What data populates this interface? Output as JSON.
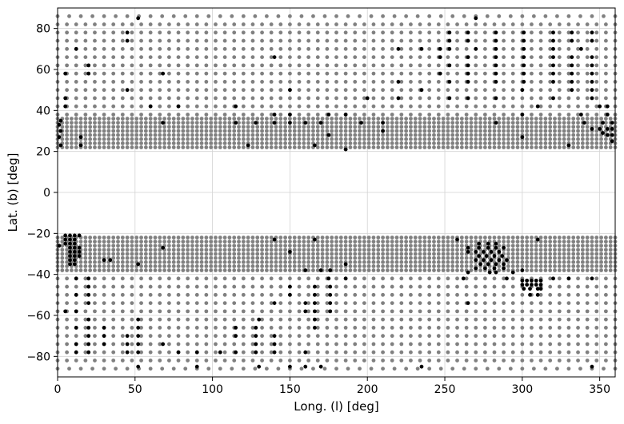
{
  "chart_data": {
    "type": "scatter",
    "xlabel": "Long. (l) [deg]",
    "ylabel": "Lat. (b) [deg]",
    "xlim": [
      0,
      360
    ],
    "ylim": [
      -90,
      90
    ],
    "xticks": [
      0,
      50,
      100,
      150,
      200,
      250,
      300,
      350
    ],
    "yticks": [
      -80,
      -60,
      -40,
      -20,
      0,
      20,
      40,
      60,
      80
    ],
    "grid": true,
    "colors": {
      "grey": "#808080",
      "black": "#000000",
      "grid": "#d3d3d3"
    },
    "series": [
      {
        "color": "#808080",
        "description_points": "dense regular grid of fields",
        "regions": [
          {
            "b": [
              -86,
              -86
            ],
            "l_step": 7.5,
            "b_step": 4,
            "l": [
              0,
              360
            ]
          },
          {
            "b": [
              -82,
              -42
            ],
            "l_step": 6,
            "b_step": 4,
            "l": [
              0,
              360
            ]
          },
          {
            "b": [
              -38,
              -22
            ],
            "l_step": 3,
            "b_step": 2,
            "l": [
              0,
              360
            ]
          },
          {
            "b": [
              22,
              36
            ],
            "l_step": 3,
            "b_step": 2,
            "l": [
              0,
              360
            ]
          },
          {
            "b": [
              38,
              82
            ],
            "l_step": 6,
            "b_step": 4,
            "l": [
              0,
              360
            ]
          },
          {
            "b": [
              86,
              86
            ],
            "l_step": 7.5,
            "b_step": 4,
            "l": [
              0,
              360
            ]
          }
        ]
      },
      {
        "color": "#000000",
        "points": [
          [
            52,
            85
          ],
          [
            270,
            85
          ],
          [
            235,
            -85
          ],
          [
            345,
            -85
          ],
          [
            90,
            -85
          ],
          [
            130,
            -85
          ],
          [
            150,
            -85
          ],
          [
            160,
            -85
          ],
          [
            170,
            -85
          ],
          [
            52,
            -85
          ],
          [
            45,
            78
          ],
          [
            253,
            78
          ],
          [
            265,
            78
          ],
          [
            283,
            78
          ],
          [
            301,
            78
          ],
          [
            320,
            78
          ],
          [
            332,
            78
          ],
          [
            345,
            78
          ],
          [
            45,
            74
          ],
          [
            253,
            74
          ],
          [
            265,
            74
          ],
          [
            283,
            74
          ],
          [
            301,
            74
          ],
          [
            320,
            74
          ],
          [
            332,
            74
          ],
          [
            345,
            74
          ],
          [
            12,
            70
          ],
          [
            220,
            70
          ],
          [
            235,
            70
          ],
          [
            247,
            70
          ],
          [
            253,
            70
          ],
          [
            270,
            70
          ],
          [
            283,
            70
          ],
          [
            301,
            70
          ],
          [
            320,
            70
          ],
          [
            338,
            70
          ],
          [
            140,
            66
          ],
          [
            247,
            66
          ],
          [
            265,
            66
          ],
          [
            283,
            66
          ],
          [
            301,
            66
          ],
          [
            320,
            66
          ],
          [
            332,
            66
          ],
          [
            345,
            66
          ],
          [
            20,
            62
          ],
          [
            253,
            62
          ],
          [
            265,
            62
          ],
          [
            283,
            62
          ],
          [
            301,
            62
          ],
          [
            320,
            62
          ],
          [
            332,
            62
          ],
          [
            345,
            62
          ],
          [
            5,
            58
          ],
          [
            20,
            58
          ],
          [
            68,
            58
          ],
          [
            247,
            58
          ],
          [
            265,
            58
          ],
          [
            283,
            58
          ],
          [
            301,
            58
          ],
          [
            320,
            58
          ],
          [
            332,
            58
          ],
          [
            345,
            58
          ],
          [
            220,
            54
          ],
          [
            253,
            54
          ],
          [
            265,
            54
          ],
          [
            283,
            54
          ],
          [
            301,
            54
          ],
          [
            320,
            54
          ],
          [
            332,
            54
          ],
          [
            345,
            54
          ],
          [
            45,
            50
          ],
          [
            150,
            50
          ],
          [
            235,
            50
          ],
          [
            300,
            50
          ],
          [
            332,
            50
          ],
          [
            345,
            50
          ],
          [
            5,
            46
          ],
          [
            200,
            46
          ],
          [
            220,
            46
          ],
          [
            253,
            46
          ],
          [
            265,
            46
          ],
          [
            283,
            46
          ],
          [
            320,
            46
          ],
          [
            345,
            46
          ],
          [
            5,
            42
          ],
          [
            60,
            42
          ],
          [
            78,
            42
          ],
          [
            115,
            42
          ],
          [
            310,
            42
          ],
          [
            350,
            42
          ],
          [
            355,
            42
          ],
          [
            2,
            35
          ],
          [
            140,
            38
          ],
          [
            150,
            38
          ],
          [
            175,
            38
          ],
          [
            186,
            38
          ],
          [
            300,
            38
          ],
          [
            338,
            38
          ],
          [
            355,
            38
          ],
          [
            1,
            33
          ],
          [
            68,
            34
          ],
          [
            115,
            34
          ],
          [
            128,
            34
          ],
          [
            140,
            34
          ],
          [
            150,
            34
          ],
          [
            160,
            34
          ],
          [
            170,
            34
          ],
          [
            196,
            34
          ],
          [
            210,
            34
          ],
          [
            283,
            34
          ],
          [
            340,
            34
          ],
          [
            352,
            34
          ],
          [
            358,
            34
          ],
          [
            2,
            30
          ],
          [
            210,
            30
          ],
          [
            345,
            31
          ],
          [
            350,
            31
          ],
          [
            355,
            31
          ],
          [
            358,
            31
          ],
          [
            1,
            27
          ],
          [
            15,
            27
          ],
          [
            175,
            28
          ],
          [
            300,
            27
          ],
          [
            355,
            28
          ],
          [
            358,
            28
          ],
          [
            352,
            29
          ],
          [
            2,
            23
          ],
          [
            15,
            23
          ],
          [
            123,
            23
          ],
          [
            166,
            23
          ],
          [
            186,
            21
          ],
          [
            330,
            23
          ],
          [
            358,
            25
          ],
          [
            5,
            -21
          ],
          [
            8,
            -21
          ],
          [
            11,
            -21
          ],
          [
            14,
            -21
          ],
          [
            5,
            -23
          ],
          [
            8,
            -23
          ],
          [
            11,
            -23
          ],
          [
            5,
            -25
          ],
          [
            8,
            -25
          ],
          [
            11,
            -25
          ],
          [
            1,
            -26
          ],
          [
            8,
            -27
          ],
          [
            11,
            -27
          ],
          [
            14,
            -27
          ],
          [
            8,
            -29
          ],
          [
            11,
            -29
          ],
          [
            14,
            -29
          ],
          [
            8,
            -31
          ],
          [
            11,
            -31
          ],
          [
            14,
            -31
          ],
          [
            8,
            -33
          ],
          [
            11,
            -33
          ],
          [
            8,
            -35
          ],
          [
            11,
            -35
          ],
          [
            30,
            -33
          ],
          [
            34,
            -33
          ],
          [
            52,
            -35
          ],
          [
            68,
            -27
          ],
          [
            140,
            -23
          ],
          [
            166,
            -23
          ],
          [
            150,
            -29
          ],
          [
            186,
            -35
          ],
          [
            160,
            -38
          ],
          [
            170,
            -38
          ],
          [
            176,
            -38
          ],
          [
            12,
            -42
          ],
          [
            20,
            -42
          ],
          [
            175,
            -42
          ],
          [
            186,
            -42
          ],
          [
            20,
            -46
          ],
          [
            150,
            -46
          ],
          [
            166,
            -46
          ],
          [
            176,
            -46
          ],
          [
            12,
            -50
          ],
          [
            20,
            -50
          ],
          [
            150,
            -50
          ],
          [
            166,
            -50
          ],
          [
            176,
            -50
          ],
          [
            20,
            -54
          ],
          [
            140,
            -54
          ],
          [
            160,
            -54
          ],
          [
            166,
            -54
          ],
          [
            176,
            -54
          ],
          [
            5,
            -58
          ],
          [
            12,
            -58
          ],
          [
            160,
            -58
          ],
          [
            166,
            -58
          ],
          [
            176,
            -58
          ],
          [
            20,
            -62
          ],
          [
            52,
            -62
          ],
          [
            130,
            -62
          ],
          [
            166,
            -62
          ],
          [
            12,
            -66
          ],
          [
            20,
            -66
          ],
          [
            30,
            -66
          ],
          [
            52,
            -66
          ],
          [
            115,
            -66
          ],
          [
            128,
            -66
          ],
          [
            166,
            -66
          ],
          [
            20,
            -70
          ],
          [
            30,
            -70
          ],
          [
            45,
            -70
          ],
          [
            52,
            -70
          ],
          [
            115,
            -70
          ],
          [
            128,
            -70
          ],
          [
            140,
            -70
          ],
          [
            12,
            -74
          ],
          [
            20,
            -74
          ],
          [
            30,
            -74
          ],
          [
            45,
            -74
          ],
          [
            52,
            -74
          ],
          [
            68,
            -74
          ],
          [
            128,
            -74
          ],
          [
            140,
            -74
          ],
          [
            12,
            -78
          ],
          [
            20,
            -78
          ],
          [
            45,
            -78
          ],
          [
            52,
            -78
          ],
          [
            78,
            -78
          ],
          [
            90,
            -78
          ],
          [
            105,
            -78
          ],
          [
            115,
            -78
          ],
          [
            128,
            -78
          ],
          [
            140,
            -78
          ],
          [
            160,
            -78
          ],
          [
            310,
            -23
          ],
          [
            258,
            -23
          ],
          [
            272,
            -25
          ],
          [
            278,
            -25
          ],
          [
            283,
            -25
          ],
          [
            265,
            -27
          ],
          [
            272,
            -27
          ],
          [
            278,
            -27
          ],
          [
            283,
            -27
          ],
          [
            288,
            -27
          ],
          [
            265,
            -29
          ],
          [
            270,
            -29
          ],
          [
            275,
            -29
          ],
          [
            280,
            -29
          ],
          [
            285,
            -29
          ],
          [
            272,
            -31
          ],
          [
            277,
            -31
          ],
          [
            282,
            -31
          ],
          [
            287,
            -31
          ],
          [
            270,
            -33
          ],
          [
            275,
            -33
          ],
          [
            280,
            -33
          ],
          [
            285,
            -33
          ],
          [
            290,
            -33
          ],
          [
            273,
            -35
          ],
          [
            278,
            -35
          ],
          [
            283,
            -35
          ],
          [
            288,
            -35
          ],
          [
            270,
            -37
          ],
          [
            276,
            -37
          ],
          [
            282,
            -37
          ],
          [
            288,
            -37
          ],
          [
            265,
            -39
          ],
          [
            279,
            -39
          ],
          [
            283,
            -39
          ],
          [
            294,
            -39
          ],
          [
            290,
            -42
          ],
          [
            300,
            -43
          ],
          [
            303,
            -43
          ],
          [
            306,
            -43
          ],
          [
            309,
            -43
          ],
          [
            312,
            -43
          ],
          [
            300,
            -45
          ],
          [
            303,
            -45
          ],
          [
            306,
            -45
          ],
          [
            309,
            -45
          ],
          [
            312,
            -45
          ],
          [
            301,
            -47
          ],
          [
            305,
            -47
          ],
          [
            310,
            -47
          ],
          [
            312,
            -47
          ],
          [
            262,
            -42
          ],
          [
            300,
            -38
          ],
          [
            305,
            -50
          ],
          [
            310,
            -50
          ],
          [
            265,
            -54
          ],
          [
            330,
            -42
          ],
          [
            345,
            -42
          ],
          [
            320,
            -42
          ]
        ]
      }
    ]
  }
}
